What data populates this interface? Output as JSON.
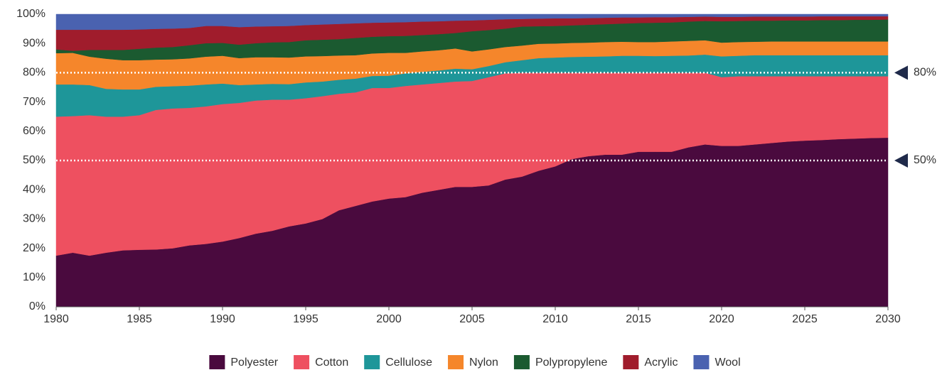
{
  "chart_data": {
    "type": "stacked_area",
    "x": [
      1980,
      1981,
      1982,
      1983,
      1984,
      1985,
      1986,
      1987,
      1988,
      1989,
      1990,
      1991,
      1992,
      1993,
      1994,
      1995,
      1996,
      1997,
      1998,
      1999,
      2000,
      2001,
      2002,
      2003,
      2004,
      2005,
      2006,
      2007,
      2008,
      2009,
      2010,
      2011,
      2012,
      2013,
      2014,
      2015,
      2016,
      2017,
      2018,
      2019,
      2020,
      2021,
      2022,
      2023,
      2024,
      2025,
      2026,
      2027,
      2028,
      2029,
      2030
    ],
    "xlim": [
      1980,
      2030
    ],
    "xticks": [
      1980,
      1985,
      1990,
      1995,
      2000,
      2005,
      2010,
      2015,
      2020,
      2025,
      2030
    ],
    "ylim": [
      0,
      100
    ],
    "yticks": [
      {
        "value": 0,
        "label": "0%"
      },
      {
        "value": 10,
        "label": "10%"
      },
      {
        "value": 20,
        "label": "20%"
      },
      {
        "value": 30,
        "label": "30%"
      },
      {
        "value": 40,
        "label": "40%"
      },
      {
        "value": 50,
        "label": "50%"
      },
      {
        "value": 60,
        "label": "60%"
      },
      {
        "value": 70,
        "label": "70%"
      },
      {
        "value": 80,
        "label": "80%"
      },
      {
        "value": 90,
        "label": "90%"
      },
      {
        "value": 100,
        "label": "100%"
      }
    ],
    "reference_lines": [
      {
        "value": 80,
        "label": "80%"
      },
      {
        "value": 50,
        "label": "50%"
      }
    ],
    "legend": "bottom",
    "series": [
      {
        "name": "Polyester",
        "color": "#4a0a3e",
        "values": [
          17.5,
          18.5,
          17.5,
          18.5,
          19.3,
          19.5,
          19.6,
          20,
          21,
          21.5,
          22.3,
          23.5,
          25,
          26,
          27.5,
          28.5,
          30,
          33,
          34.5,
          36,
          37,
          37.5,
          39,
          40,
          41,
          41,
          41.5,
          43.5,
          44.5,
          46.5,
          48,
          50.5,
          51.5,
          52,
          52,
          53,
          53,
          53,
          54.5,
          55.5,
          55,
          55,
          55.5,
          56,
          56.5,
          56.8,
          57,
          57.3,
          57.5,
          57.7,
          57.8
        ]
      },
      {
        "name": "Cotton",
        "color": "#ee5060",
        "values": [
          47.5,
          46.7,
          48,
          46.5,
          45.7,
          46,
          47.7,
          47.8,
          47,
          47,
          47,
          46.2,
          45.5,
          44.8,
          43.3,
          42.8,
          42,
          39.8,
          38.8,
          38.8,
          37.8,
          38,
          37,
          36.5,
          36,
          36.2,
          37,
          36.3,
          35.5,
          33.5,
          32,
          29.5,
          28.5,
          28,
          28,
          27,
          27,
          27,
          25.5,
          24.5,
          23.5,
          23.8,
          23.3,
          22.8,
          22.3,
          22,
          21.8,
          21.5,
          21.3,
          21.1,
          21
        ]
      },
      {
        "name": "Cellulose",
        "color": "#1e9699",
        "values": [
          11,
          10.8,
          10.3,
          9.5,
          9.3,
          8.8,
          7.9,
          7.6,
          7.6,
          7.5,
          7,
          6.1,
          5.5,
          5.4,
          5.3,
          5.4,
          5,
          4.8,
          4.7,
          4.1,
          4.2,
          4.3,
          4.3,
          4.3,
          4.4,
          4,
          3.8,
          3.8,
          4.3,
          5,
          5.2,
          5.4,
          5.5,
          5.6,
          5.8,
          5.8,
          5.7,
          5.8,
          5.9,
          6.2,
          7.1,
          7,
          7.2,
          7.2,
          7.2,
          7.2,
          7.2,
          7.2,
          7.2,
          7.2,
          7.2
        ]
      },
      {
        "name": "Nylon",
        "color": "#f5862b",
        "values": [
          10.7,
          10.8,
          9.7,
          10.3,
          10,
          10,
          9.3,
          9.2,
          9.3,
          9.5,
          9.5,
          9.2,
          9.3,
          9.1,
          9.1,
          8.9,
          8.7,
          8.3,
          8,
          7.7,
          7.8,
          7,
          7,
          6.9,
          6.9,
          6.1,
          5.7,
          5.2,
          5,
          4.9,
          4.8,
          4.8,
          4.8,
          4.9,
          4.8,
          4.7,
          4.8,
          4.9,
          5,
          4.9,
          4.7,
          4.7,
          4.6,
          4.7,
          4.7,
          4.7,
          4.7,
          4.7,
          4.7,
          4.7,
          4.7
        ]
      },
      {
        "name": "Polypropylene",
        "color": "#1b5a30",
        "values": [
          1.3,
          0.7,
          2.3,
          3,
          3.5,
          3.9,
          4.1,
          4.2,
          4.5,
          4.6,
          4.4,
          4.6,
          4.8,
          5.1,
          5.3,
          5.5,
          5.6,
          5.6,
          5.9,
          5.7,
          5.7,
          5.8,
          5.6,
          5.5,
          5.3,
          6.9,
          6.6,
          6.3,
          6.5,
          6,
          6,
          6,
          6.1,
          6.1,
          6.2,
          6.5,
          6.6,
          6.5,
          6.6,
          6.6,
          7.3,
          7.2,
          7.2,
          7.1,
          7.2,
          7.2,
          7.3,
          7.3,
          7.4,
          7.4,
          7.5
        ]
      },
      {
        "name": "Acrylic",
        "color": "#a01c2c",
        "values": [
          6.7,
          7.2,
          6.9,
          6.9,
          6.9,
          6.6,
          6.4,
          6.3,
          5.9,
          5.9,
          5.8,
          6,
          5.7,
          5.5,
          5.5,
          5.2,
          5.2,
          5.2,
          5,
          4.8,
          4.7,
          4.7,
          4.6,
          4.4,
          4.2,
          3.7,
          3.5,
          3.2,
          2.6,
          2.6,
          2.6,
          2.4,
          2.3,
          2.2,
          2.1,
          1.9,
          1.9,
          1.8,
          1.6,
          1.5,
          1.5,
          1.4,
          1.4,
          1.4,
          1.3,
          1.3,
          1.3,
          1.3,
          1.2,
          1.2,
          1.1
        ]
      },
      {
        "name": "Wool",
        "color": "#4a62b0",
        "values": [
          5.3,
          5.3,
          5.3,
          5.3,
          5.3,
          5.2,
          5,
          4.9,
          4.7,
          4,
          4,
          4.4,
          4.2,
          4.1,
          4,
          3.7,
          3.5,
          3.3,
          3.1,
          2.9,
          2.8,
          2.7,
          2.5,
          2.4,
          2.2,
          2.1,
          1.9,
          1.7,
          1.6,
          1.5,
          1.4,
          1.4,
          1.3,
          1.2,
          1.1,
          1.1,
          1,
          1,
          0.9,
          0.8,
          0.9,
          0.9,
          0.8,
          0.8,
          0.8,
          0.8,
          0.7,
          0.7,
          0.7,
          0.7,
          0.7
        ]
      }
    ]
  }
}
